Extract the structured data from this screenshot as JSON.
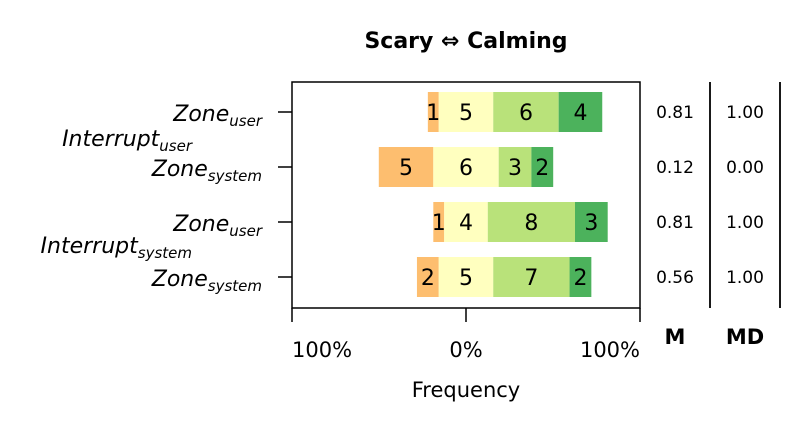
{
  "chart_data": {
    "type": "bar",
    "stacked": true,
    "diverging": true,
    "title": "Scary ⇔ Calming",
    "xlabel": "Frequency",
    "x_tick_labels": [
      "100%",
      "0%",
      "100%"
    ],
    "scale_levels": [
      "1",
      "2",
      "3",
      "4",
      "5"
    ],
    "colors": {
      "1": "#f58a4b",
      "2": "#fdbe6f",
      "3": "#ffffbf",
      "4": "#b9e27a",
      "5": "#4cb25c"
    },
    "groups": [
      {
        "label": "Interrupt",
        "label_sub": "user"
      },
      {
        "label": "Interrupt",
        "label_sub": "system"
      }
    ],
    "rows": [
      {
        "label": "Zone",
        "label_sub": "user",
        "counts": [
          0,
          1,
          5,
          6,
          4
        ],
        "M": "0.81",
        "MD": "1.00"
      },
      {
        "label": "Zone",
        "label_sub": "system",
        "counts": [
          0,
          5,
          6,
          3,
          2
        ],
        "M": "0.12",
        "MD": "0.00"
      },
      {
        "label": "Zone",
        "label_sub": "user",
        "counts": [
          0,
          1,
          4,
          8,
          3
        ],
        "M": "0.81",
        "MD": "1.00"
      },
      {
        "label": "Zone",
        "label_sub": "system",
        "counts": [
          0,
          2,
          5,
          7,
          2
        ],
        "M": "0.56",
        "MD": "1.00"
      }
    ],
    "stats_headers": {
      "M": "M",
      "MD": "MD"
    }
  }
}
